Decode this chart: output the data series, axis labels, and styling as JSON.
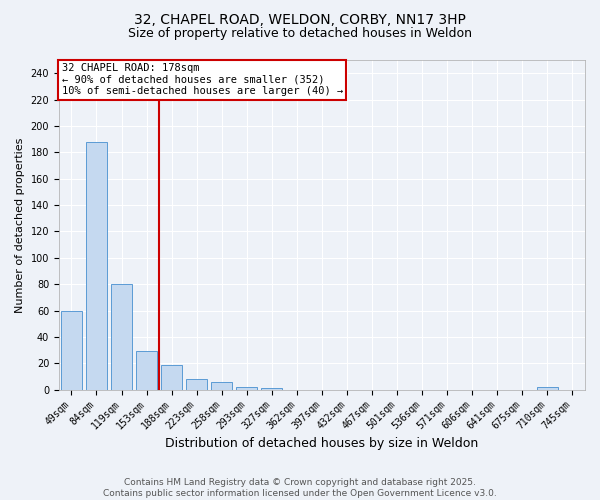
{
  "title_line1": "32, CHAPEL ROAD, WELDON, CORBY, NN17 3HP",
  "title_line2": "Size of property relative to detached houses in Weldon",
  "xlabel": "Distribution of detached houses by size in Weldon",
  "ylabel": "Number of detached properties",
  "categories": [
    "49sqm",
    "84sqm",
    "119sqm",
    "153sqm",
    "188sqm",
    "223sqm",
    "258sqm",
    "293sqm",
    "327sqm",
    "362sqm",
    "397sqm",
    "432sqm",
    "467sqm",
    "501sqm",
    "536sqm",
    "571sqm",
    "606sqm",
    "641sqm",
    "675sqm",
    "710sqm",
    "745sqm"
  ],
  "values": [
    60,
    188,
    80,
    29,
    19,
    8,
    6,
    2,
    1,
    0,
    0,
    0,
    0,
    0,
    0,
    0,
    0,
    0,
    0,
    2,
    0
  ],
  "bar_color": "#c5d9f0",
  "bar_edge_color": "#5b9bd5",
  "red_line_index": 4,
  "ylim": [
    0,
    250
  ],
  "yticks": [
    0,
    20,
    40,
    60,
    80,
    100,
    120,
    140,
    160,
    180,
    200,
    220,
    240
  ],
  "annotation_text": "32 CHAPEL ROAD: 178sqm\n← 90% of detached houses are smaller (352)\n10% of semi-detached houses are larger (40) →",
  "annotation_box_color": "#ffffff",
  "annotation_box_edge_color": "#cc0000",
  "footer_line1": "Contains HM Land Registry data © Crown copyright and database right 2025.",
  "footer_line2": "Contains public sector information licensed under the Open Government Licence v3.0.",
  "background_color": "#eef2f8",
  "grid_color": "#ffffff",
  "title_fontsize": 10,
  "subtitle_fontsize": 9,
  "ylabel_fontsize": 8,
  "xlabel_fontsize": 9,
  "tick_fontsize": 7,
  "annotation_fontsize": 7.5,
  "footer_fontsize": 6.5
}
